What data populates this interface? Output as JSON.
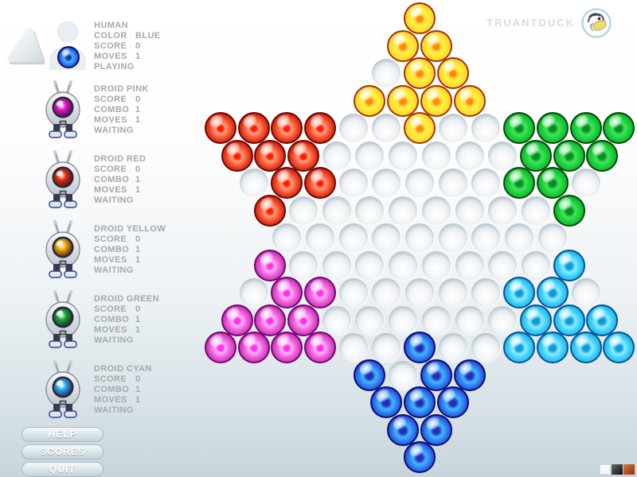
{
  "logo": {
    "text": "TRUANTDUCK"
  },
  "players": [
    {
      "name": "HUMAN",
      "type": "human",
      "marble_color": "blue",
      "eye_color": "#2e86f2",
      "stats": [
        {
          "label": "COLOR",
          "value": "BLUE"
        },
        {
          "label": "SCORE",
          "value": "0"
        },
        {
          "label": "MOVES",
          "value": "1"
        }
      ],
      "status": "PLAYING"
    },
    {
      "name": "DROID PINK",
      "type": "droid",
      "marble_color": "magenta",
      "eye_color": "#e316c8",
      "stats": [
        {
          "label": "SCORE",
          "value": "0"
        },
        {
          "label": "COMBO",
          "value": "1"
        },
        {
          "label": "MOVES",
          "value": "1"
        }
      ],
      "status": "WAITING"
    },
    {
      "name": "DROID RED",
      "type": "droid",
      "marble_color": "red",
      "eye_color": "#e03000",
      "stats": [
        {
          "label": "SCORE",
          "value": "0"
        },
        {
          "label": "COMBO",
          "value": "1"
        },
        {
          "label": "MOVES",
          "value": "1"
        }
      ],
      "status": "WAITING"
    },
    {
      "name": "DROID YELLOW",
      "type": "droid",
      "marble_color": "yellow",
      "eye_color": "#f0a800",
      "stats": [
        {
          "label": "SCORE",
          "value": "0"
        },
        {
          "label": "COMBO",
          "value": "1"
        },
        {
          "label": "MOVES",
          "value": "1"
        }
      ],
      "status": "WAITING"
    },
    {
      "name": "DROID GREEN",
      "type": "droid",
      "marble_color": "green",
      "eye_color": "#0fa832",
      "stats": [
        {
          "label": "SCORE",
          "value": "0"
        },
        {
          "label": "COMBO",
          "value": "1"
        },
        {
          "label": "MOVES",
          "value": "1"
        }
      ],
      "status": "WAITING"
    },
    {
      "name": "DROID CYAN",
      "type": "droid",
      "marble_color": "cyan",
      "eye_color": "#22aaf0",
      "stats": [
        {
          "label": "SCORE",
          "value": "0"
        },
        {
          "label": "COMBO",
          "value": "1"
        },
        {
          "label": "MOVES",
          "value": "1"
        }
      ],
      "status": "WAITING"
    }
  ],
  "menu": [
    {
      "label": "HELP"
    },
    {
      "label": "SCORES"
    },
    {
      "label": "QUIT"
    }
  ],
  "board": {
    "type": "chinese-checkers",
    "rows_hole_counts": [
      1,
      2,
      3,
      4,
      13,
      12,
      11,
      10,
      9,
      10,
      11,
      12,
      13,
      4,
      3,
      2,
      1
    ],
    "marbles": {
      "yellow": [
        [
          1,
          1
        ],
        [
          2,
          1
        ],
        [
          2,
          2
        ],
        [
          3,
          2
        ],
        [
          3,
          3
        ],
        [
          4,
          1
        ],
        [
          4,
          2
        ],
        [
          4,
          3
        ],
        [
          4,
          4
        ],
        [
          5,
          7
        ]
      ],
      "red": [
        [
          5,
          1
        ],
        [
          5,
          2
        ],
        [
          5,
          3
        ],
        [
          5,
          4
        ],
        [
          6,
          1
        ],
        [
          6,
          2
        ],
        [
          6,
          3
        ],
        [
          7,
          2
        ],
        [
          7,
          3
        ],
        [
          8,
          1
        ]
      ],
      "green": [
        [
          5,
          10
        ],
        [
          5,
          11
        ],
        [
          5,
          12
        ],
        [
          5,
          13
        ],
        [
          6,
          10
        ],
        [
          6,
          11
        ],
        [
          6,
          12
        ],
        [
          7,
          9
        ],
        [
          7,
          10
        ],
        [
          8,
          10
        ]
      ],
      "magenta": [
        [
          10,
          1
        ],
        [
          11,
          2
        ],
        [
          11,
          3
        ],
        [
          12,
          1
        ],
        [
          12,
          2
        ],
        [
          12,
          3
        ],
        [
          13,
          1
        ],
        [
          13,
          2
        ],
        [
          13,
          3
        ],
        [
          13,
          4
        ]
      ],
      "cyan": [
        [
          10,
          10
        ],
        [
          11,
          9
        ],
        [
          11,
          10
        ],
        [
          12,
          10
        ],
        [
          12,
          11
        ],
        [
          12,
          12
        ],
        [
          13,
          10
        ],
        [
          13,
          11
        ],
        [
          13,
          12
        ],
        [
          13,
          13
        ]
      ],
      "blue": [
        [
          13,
          7
        ],
        [
          14,
          1
        ],
        [
          14,
          3
        ],
        [
          14,
          4
        ],
        [
          15,
          1
        ],
        [
          15,
          2
        ],
        [
          15,
          3
        ],
        [
          16,
          1
        ],
        [
          16,
          2
        ],
        [
          17,
          1
        ]
      ]
    },
    "palette": {
      "yellow": "#ffd92e",
      "red": "#d81d05",
      "green": "#17cc37",
      "magenta": "#d232c0",
      "cyan": "#3cd0fa",
      "blue": "#2e86f2"
    }
  },
  "swatches": [
    {
      "name": "white",
      "color": "#f5f9fa"
    },
    {
      "name": "black",
      "color": "#1a1a1a"
    },
    {
      "name": "rust",
      "color": "#a1461d"
    }
  ]
}
